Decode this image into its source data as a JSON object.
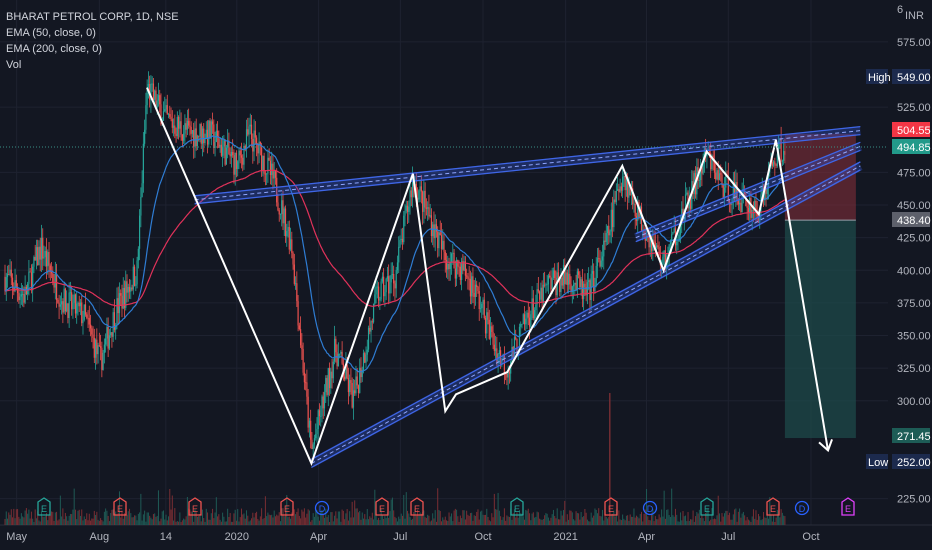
{
  "header": {
    "symbol": "BHARAT PETROL CORP, 1D, NSE",
    "ema50": "EMA (50, close, 0)",
    "ema200": "EMA (200, close, 0)",
    "vol": "Vol"
  },
  "axis": {
    "currency_top": "6",
    "currency": "INR",
    "y_ticks": [
      "575.00",
      "525.00",
      "475.00",
      "450.00",
      "425.00",
      "400.00",
      "375.00",
      "350.00",
      "325.00",
      "300.00",
      "225.00"
    ],
    "x_ticks": [
      "May",
      "Aug",
      "14",
      "2020",
      "Apr",
      "Jul",
      "Oct",
      "2021",
      "Apr",
      "Jul",
      "Oct"
    ]
  },
  "price_tags": {
    "high_label": "High",
    "high_value": "549.00",
    "target": "504.55",
    "last": "494.85",
    "entry": "438.40",
    "stop": "271.45",
    "low_label": "Low",
    "low_value": "252.00"
  },
  "events": [
    "E",
    "E",
    "E",
    "E",
    "E",
    "D",
    "E",
    "E",
    "E",
    "E",
    "E",
    "D",
    "D",
    "E",
    "E",
    "D",
    "E"
  ],
  "colors": {
    "background": "#131722",
    "ema50": "#2f7dd4",
    "ema200": "#e0325a",
    "channel": "#3052d0",
    "zigzag": "#ffffff",
    "candle_up": "#26a69a",
    "candle_down": "#ef5350",
    "risk_zone": "#8b2f3a",
    "reward_zone": "#1e4a49"
  },
  "chart_data": {
    "type": "candlestick",
    "title": "BHARAT PETROL CORP, 1D, NSE",
    "ylim": [
      212,
      600
    ],
    "x_range": [
      "2019-04-18",
      "2021-11-25"
    ],
    "zigzag": [
      {
        "date": "2019-09-23",
        "price": 540
      },
      {
        "date": "2020-03-24",
        "price": 252
      },
      {
        "date": "2020-07-15",
        "price": 474
      },
      {
        "date": "2020-08-20",
        "price": 292
      },
      {
        "date": "2020-09-01",
        "price": 305
      },
      {
        "date": "2020-10-28",
        "price": 322
      },
      {
        "date": "2021-03-05",
        "price": 480
      },
      {
        "date": "2021-04-20",
        "price": 400
      },
      {
        "date": "2021-06-07",
        "price": 491
      },
      {
        "date": "2021-08-04",
        "price": 443
      },
      {
        "date": "2021-08-23",
        "price": 500
      },
      {
        "date": "2021-10-20",
        "price": 262
      }
    ],
    "upper_trendline": [
      {
        "date": "2019-11-15",
        "price": 454
      },
      {
        "date": "2021-11-25",
        "price": 507
      }
    ],
    "lower_trendline": [
      {
        "date": "2020-03-24",
        "price": 252
      },
      {
        "date": "2021-11-25",
        "price": 480
      }
    ],
    "position": {
      "entry": 438.4,
      "target": 504.55,
      "stop": 271.45,
      "last": 494.85,
      "high": 549.0,
      "low": 252.0
    }
  }
}
